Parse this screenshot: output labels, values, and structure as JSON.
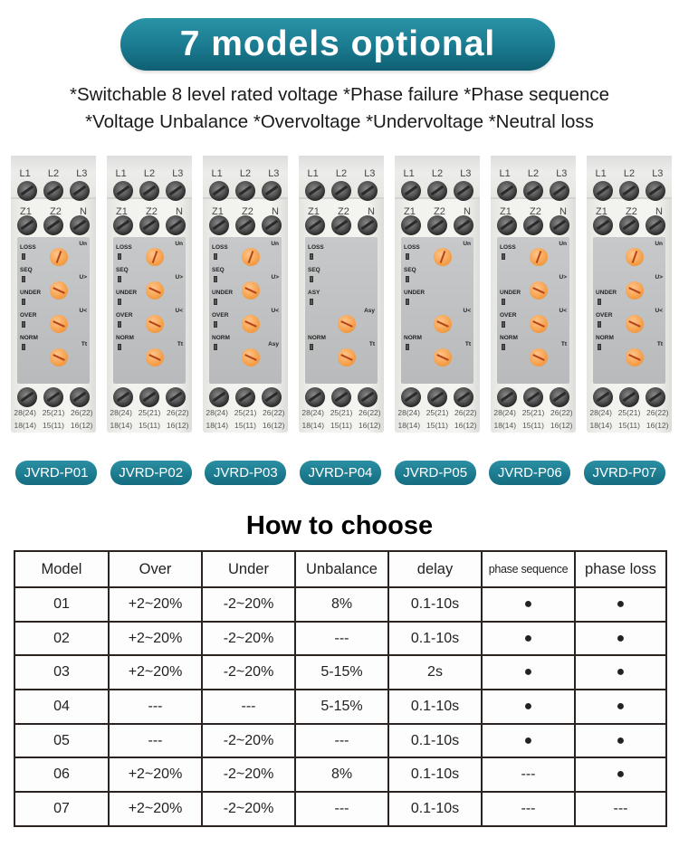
{
  "banner": {
    "title": "7 models optional"
  },
  "features": {
    "line1": "*Switchable 8 level rated voltage *Phase failure  *Phase sequence",
    "line2": "*Voltage Unbalance *Overvoltage  *Undervoltage  *Neutral loss"
  },
  "device_labels": {
    "top_terminals": [
      "L1",
      "L2",
      "L3"
    ],
    "mid_terminals": [
      "Z1",
      "Z2",
      "N"
    ],
    "bottom_terminals_a": [
      "28(24)",
      "25(21)",
      "26(22)"
    ],
    "bottom_terminals_b": [
      "18(14)",
      "15(11)",
      "16(12)"
    ]
  },
  "devices": [
    {
      "model": "JVRD-P01",
      "indicators": [
        "LOSS",
        "SEQ",
        "UNDER",
        "OVER",
        "NORM"
      ],
      "dials": [
        "Un",
        "U>",
        "U<",
        "Tt"
      ]
    },
    {
      "model": "JVRD-P02",
      "indicators": [
        "LOSS",
        "SEQ",
        "UNDER",
        "OVER",
        "NORM"
      ],
      "dials": [
        "Un",
        "U>",
        "U<",
        "Tt"
      ]
    },
    {
      "model": "JVRD-P03",
      "indicators": [
        "LOSS",
        "SEQ",
        "UNDER",
        "OVER",
        "NORM"
      ],
      "dials": [
        "Un",
        "U>",
        "U<",
        "Asy"
      ]
    },
    {
      "model": "JVRD-P04",
      "indicators": [
        "LOSS",
        "SEQ",
        "ASY",
        "NORM"
      ],
      "dials": [
        "Asy",
        "Tt"
      ]
    },
    {
      "model": "JVRD-P05",
      "indicators": [
        "LOSS",
        "SEQ",
        "UNDER",
        "NORM"
      ],
      "dials": [
        "Un",
        "U<",
        "Tt"
      ]
    },
    {
      "model": "JVRD-P06",
      "indicators": [
        "LOSS",
        "UNDER",
        "OVER",
        "NORM"
      ],
      "dials": [
        "Un",
        "U>",
        "U<",
        "Tt"
      ]
    },
    {
      "model": "JVRD-P07",
      "indicators": [
        "UNDER",
        "OVER",
        "NORM"
      ],
      "dials": [
        "Un",
        "U>",
        "U<",
        "Tt"
      ]
    }
  ],
  "choose": {
    "title": "How to choose",
    "headers": [
      "Model",
      "Over",
      "Under",
      "Unbalance",
      "delay",
      "phase sequence",
      "phase loss"
    ],
    "rows": [
      [
        "01",
        "+2~20%",
        "-2~20%",
        "8%",
        "0.1-10s",
        "●",
        "●"
      ],
      [
        "02",
        "+2~20%",
        "-2~20%",
        "---",
        "0.1-10s",
        "●",
        "●"
      ],
      [
        "03",
        "+2~20%",
        "-2~20%",
        "5-15%",
        "2s",
        "●",
        "●"
      ],
      [
        "04",
        "---",
        "---",
        "5-15%",
        "0.1-10s",
        "●",
        "●"
      ],
      [
        "05",
        "---",
        "-2~20%",
        "---",
        "0.1-10s",
        "●",
        "●"
      ],
      [
        "06",
        "+2~20%",
        "-2~20%",
        "8%",
        "0.1-10s",
        "---",
        "●"
      ],
      [
        "07",
        "+2~20%",
        "-2~20%",
        "---",
        "0.1-10s",
        "---",
        "---"
      ]
    ]
  },
  "colors": {
    "accent": "#1a7a8f",
    "dial": "#f5a04a",
    "table_border": "#2b2320"
  }
}
